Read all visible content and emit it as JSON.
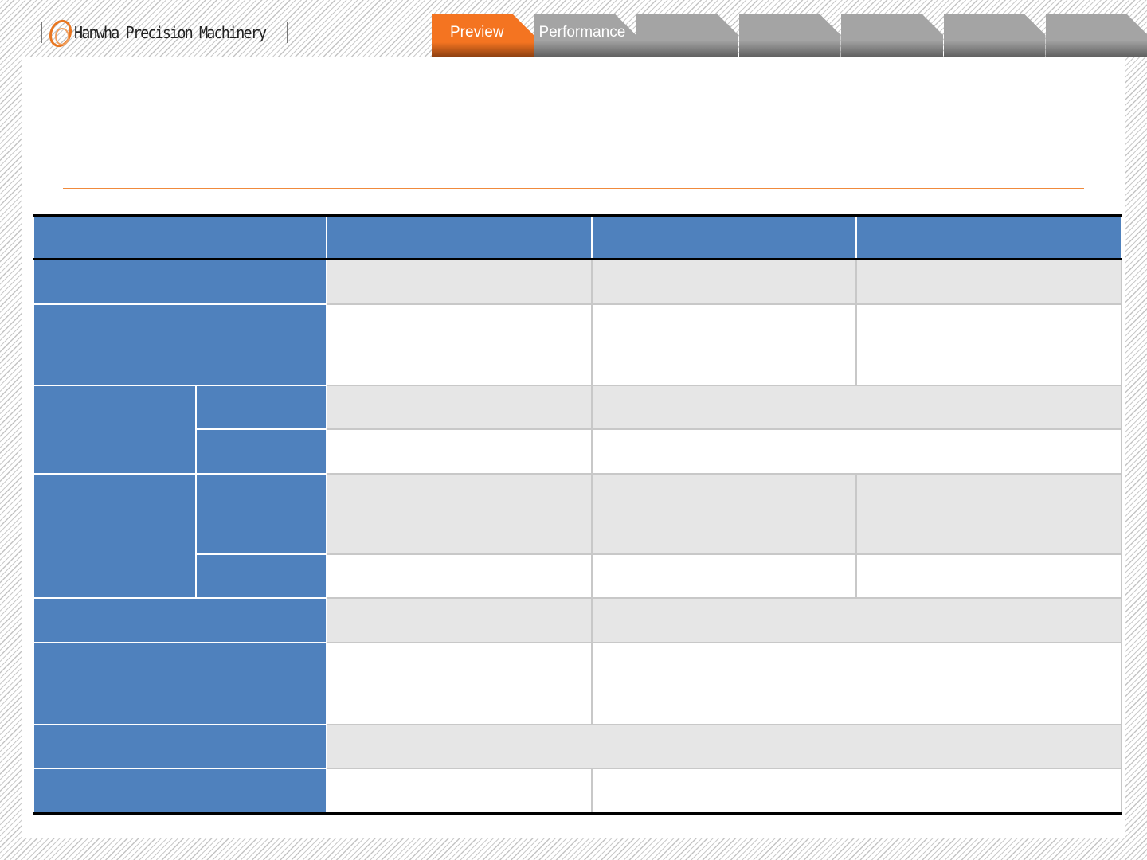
{
  "header": {
    "logo_text": "Hanwha Precision Machinery",
    "tabs": [
      {
        "label": "Preview",
        "active": true
      },
      {
        "label": "Performance",
        "active": false
      },
      {
        "label": "",
        "active": false
      },
      {
        "label": "",
        "active": false
      },
      {
        "label": "",
        "active": false
      },
      {
        "label": "",
        "active": false
      },
      {
        "label": "",
        "active": false
      }
    ]
  },
  "colors": {
    "accent": "#f47421",
    "table_header": "#4f81bd",
    "row_shade": "#e6e6e6",
    "tab_inactive": "#a4a4a4"
  }
}
